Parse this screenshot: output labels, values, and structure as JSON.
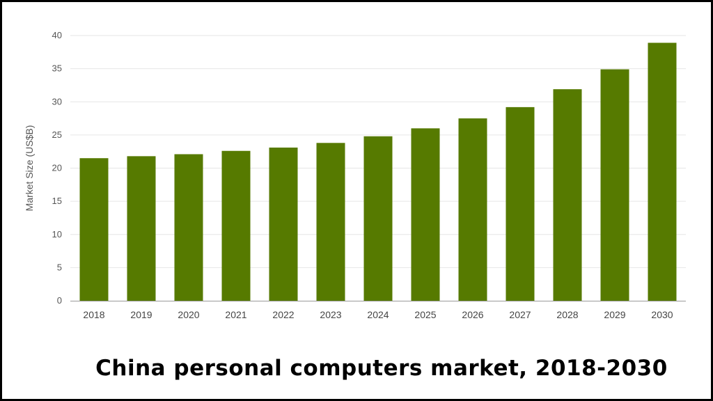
{
  "chart_data": {
    "type": "bar",
    "title": "China personal computers market, 2018-2030",
    "xlabel": "",
    "ylabel": "Market Size (US$B)",
    "categories": [
      "2018",
      "2019",
      "2020",
      "2021",
      "2022",
      "2023",
      "2024",
      "2025",
      "2026",
      "2027",
      "2028",
      "2029",
      "2030"
    ],
    "values": [
      21.5,
      21.8,
      22.1,
      22.6,
      23.1,
      23.8,
      24.8,
      26.0,
      27.5,
      29.2,
      31.9,
      34.9,
      38.9
    ],
    "ylim": [
      0,
      40
    ],
    "yticks": [
      0,
      5,
      10,
      15,
      20,
      25,
      30,
      35,
      40
    ],
    "grid": true,
    "legend": "none",
    "bar_color": "#567a00",
    "gridline_color": "#e6e6e6",
    "axis_color": "#999999"
  }
}
